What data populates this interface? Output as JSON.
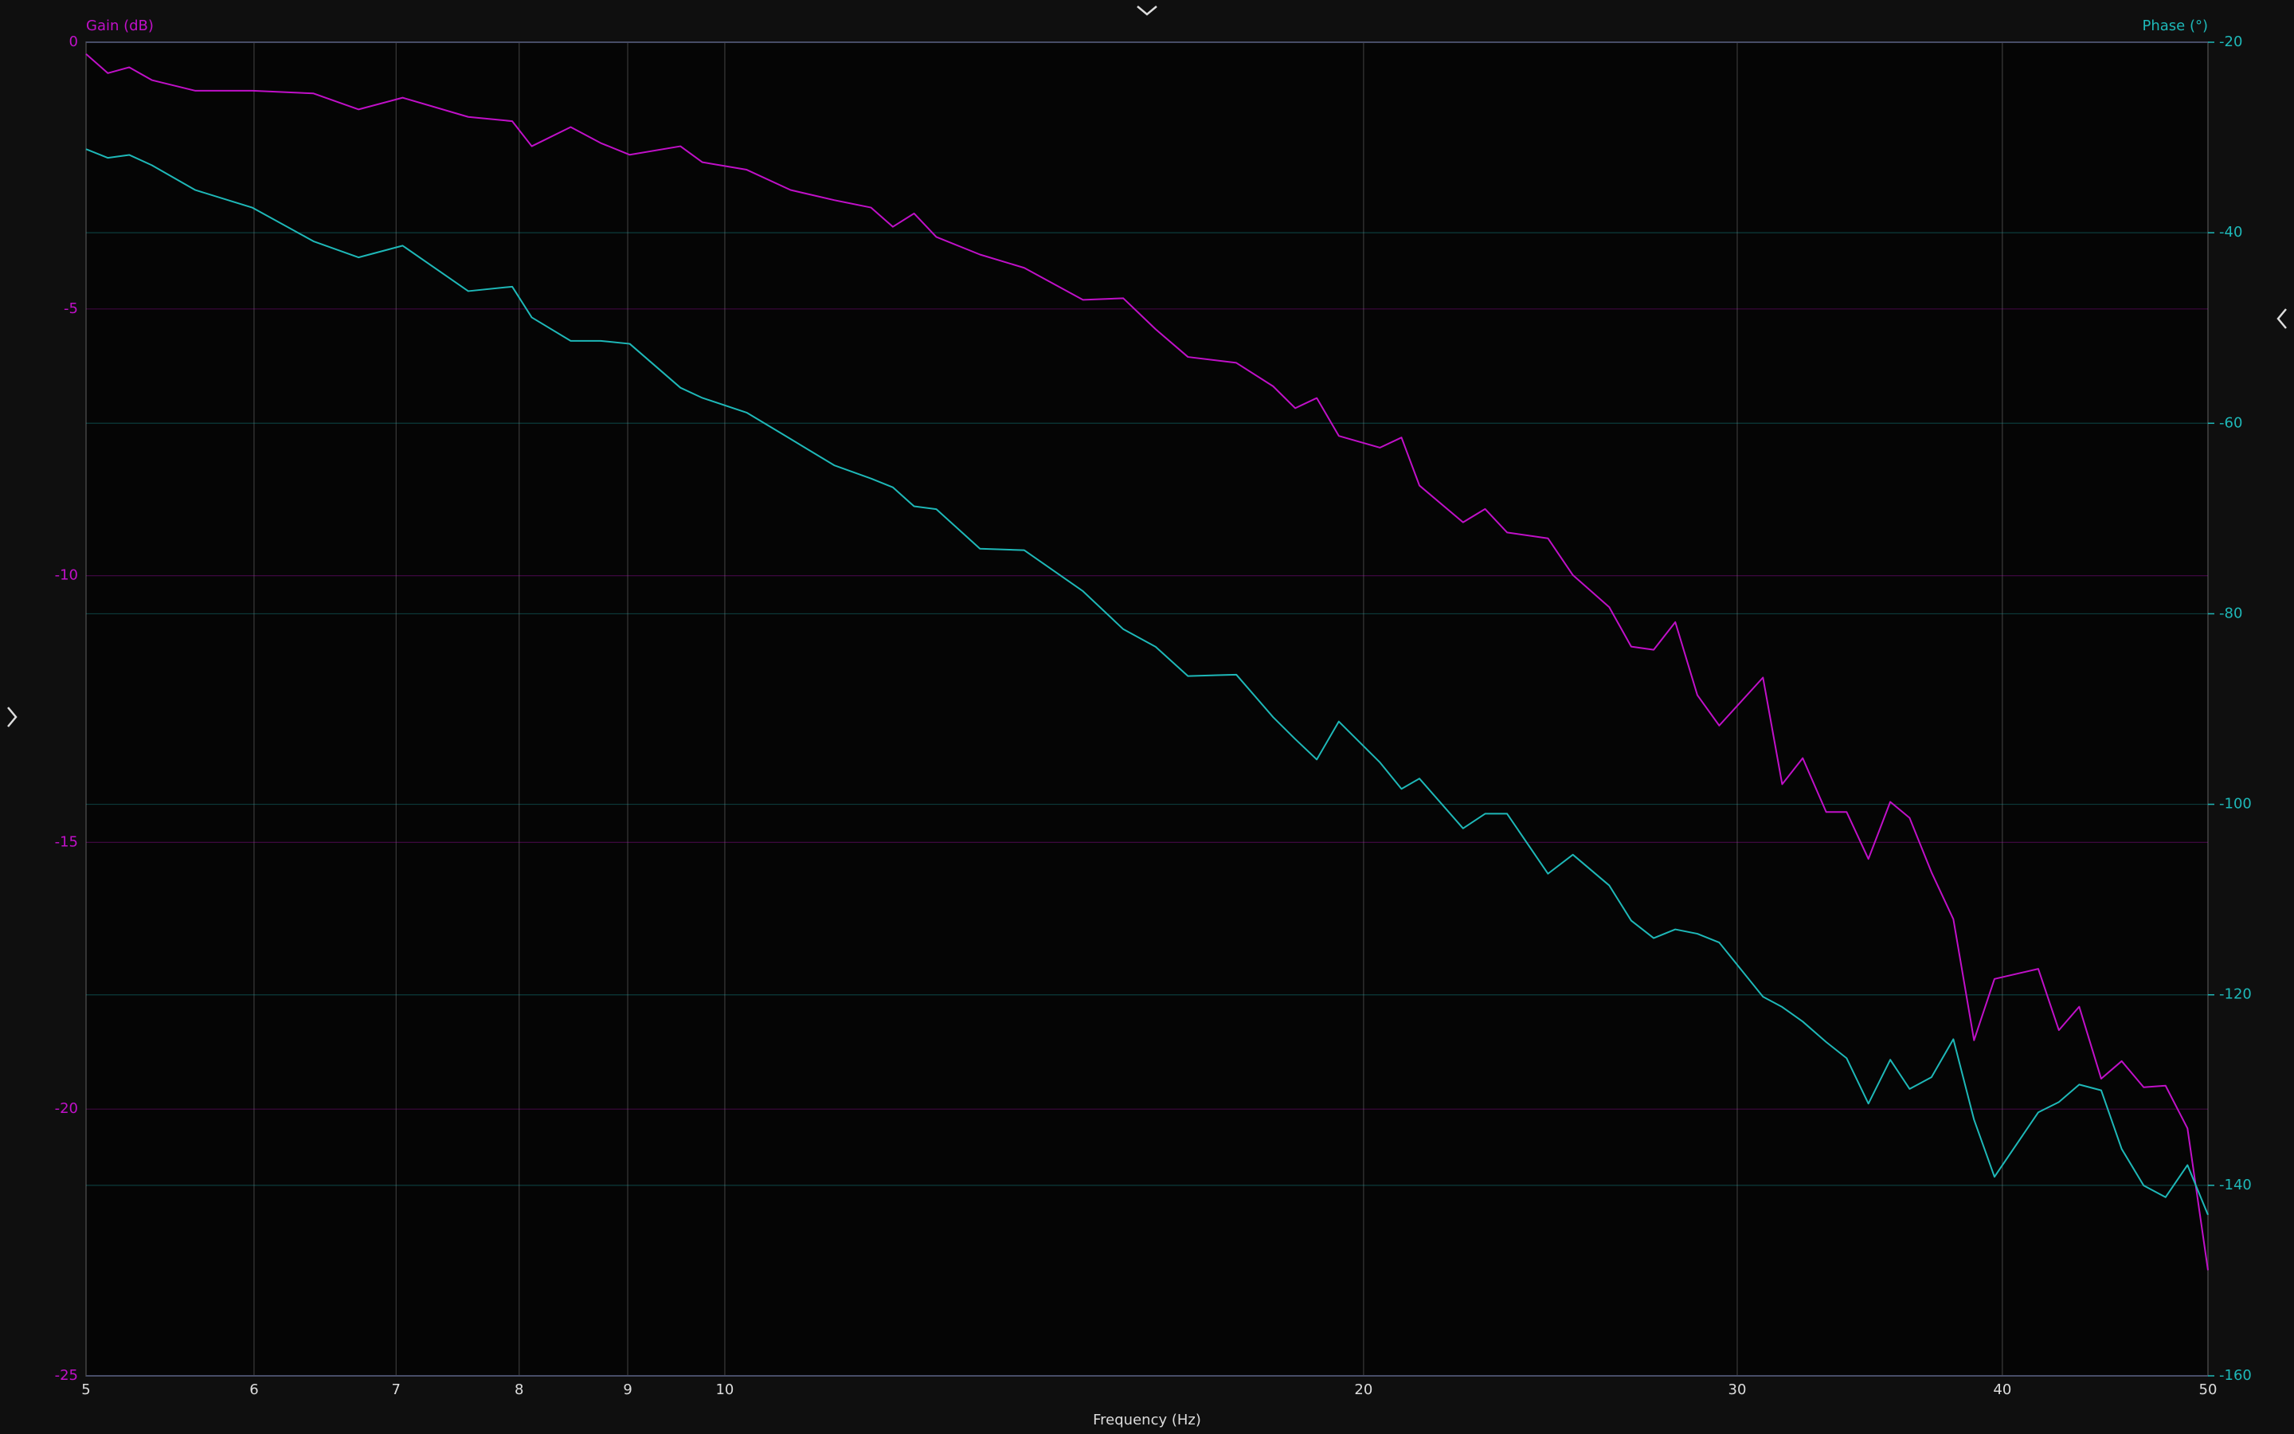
{
  "chart_data": {
    "type": "line",
    "ylabel": "Gain (dB)",
    "y2label": "Phase (°)",
    "xlabel": "Frequency (Hz)",
    "xscale": "log",
    "grid": true,
    "xlim": [
      5,
      50
    ],
    "xticks": [
      5,
      6,
      7,
      8,
      9,
      10,
      20,
      30,
      40,
      50
    ],
    "ylim": [
      -25,
      0
    ],
    "yticks": [
      0,
      -5,
      -10,
      -15,
      -20,
      -25
    ],
    "y2lim": [
      -160,
      -20
    ],
    "y2ticks": [
      -20,
      -40,
      -60,
      -80,
      -100,
      -120,
      -140,
      -160
    ],
    "x": [
      5.0,
      5.12,
      5.24,
      5.37,
      5.63,
      5.99,
      6.4,
      6.72,
      7.05,
      7.57,
      7.94,
      8.11,
      8.46,
      8.74,
      9.02,
      9.53,
      9.76,
      10.24,
      10.74,
      11.26,
      11.72,
      12.0,
      12.28,
      12.58,
      13.19,
      13.84,
      14.75,
      15.41,
      15.96,
      16.53,
      17.42,
      18.13,
      18.57,
      19.01,
      19.47,
      20.36,
      20.84,
      21.25,
      22.28,
      22.82,
      23.37,
      24.43,
      25.1,
      26.11,
      26.74,
      27.4,
      28.05,
      28.73,
      29.42,
      30.85,
      31.5,
      32.21,
      33.04,
      33.78,
      34.59,
      35.42,
      36.17,
      37.04,
      37.93,
      38.79,
      39.66,
      41.59,
      42.53,
      43.48,
      44.53,
      45.53,
      46.63,
      47.75,
      48.9,
      50.0
    ],
    "series": [
      {
        "color": "#c010c8",
        "axis": "y",
        "values": [
          -0.22,
          -0.58,
          -0.47,
          -0.71,
          -0.91,
          -0.91,
          -0.96,
          -1.26,
          -1.04,
          -1.4,
          -1.48,
          -1.95,
          -1.59,
          -1.89,
          -2.11,
          -1.95,
          -2.25,
          -2.39,
          -2.77,
          -2.96,
          -3.1,
          -3.46,
          -3.21,
          -3.65,
          -3.98,
          -4.23,
          -4.83,
          -4.8,
          -5.38,
          -5.9,
          -6.01,
          -6.45,
          -6.86,
          -6.67,
          -7.38,
          -7.6,
          -7.41,
          -8.31,
          -9.0,
          -8.75,
          -9.19,
          -9.3,
          -9.99,
          -10.59,
          -11.33,
          -11.39,
          -10.87,
          -12.24,
          -12.81,
          -11.91,
          -13.91,
          -13.42,
          -14.43,
          -14.43,
          -15.31,
          -14.24,
          -14.54,
          -15.56,
          -16.44,
          -18.71,
          -17.56,
          -17.37,
          -18.52,
          -18.08,
          -19.43,
          -19.1,
          -19.59,
          -19.56,
          -20.36,
          -23.02
        ]
      },
      {
        "color": "#1eb8b8",
        "axis": "y2",
        "values": [
          -31.22,
          -32.14,
          -31.83,
          -32.91,
          -35.52,
          -37.37,
          -40.9,
          -42.59,
          -41.36,
          -46.13,
          -45.66,
          -48.89,
          -51.35,
          -51.35,
          -51.66,
          -56.27,
          -57.34,
          -58.88,
          -61.65,
          -64.41,
          -65.8,
          -66.72,
          -68.72,
          -69.02,
          -73.17,
          -73.33,
          -77.63,
          -81.62,
          -83.47,
          -86.54,
          -86.39,
          -90.85,
          -93.15,
          -95.3,
          -91.31,
          -95.61,
          -98.38,
          -97.3,
          -102.53,
          -100.99,
          -100.99,
          -107.29,
          -105.29,
          -108.52,
          -112.21,
          -114.05,
          -113.13,
          -113.59,
          -114.51,
          -120.2,
          -121.28,
          -122.81,
          -124.96,
          -126.65,
          -131.42,
          -126.81,
          -129.88,
          -128.65,
          -124.66,
          -133.11,
          -139.11,
          -132.34,
          -131.26,
          -129.42,
          -130.03,
          -136.18,
          -140.02,
          -141.25,
          -137.87,
          -143.1
        ]
      }
    ]
  }
}
